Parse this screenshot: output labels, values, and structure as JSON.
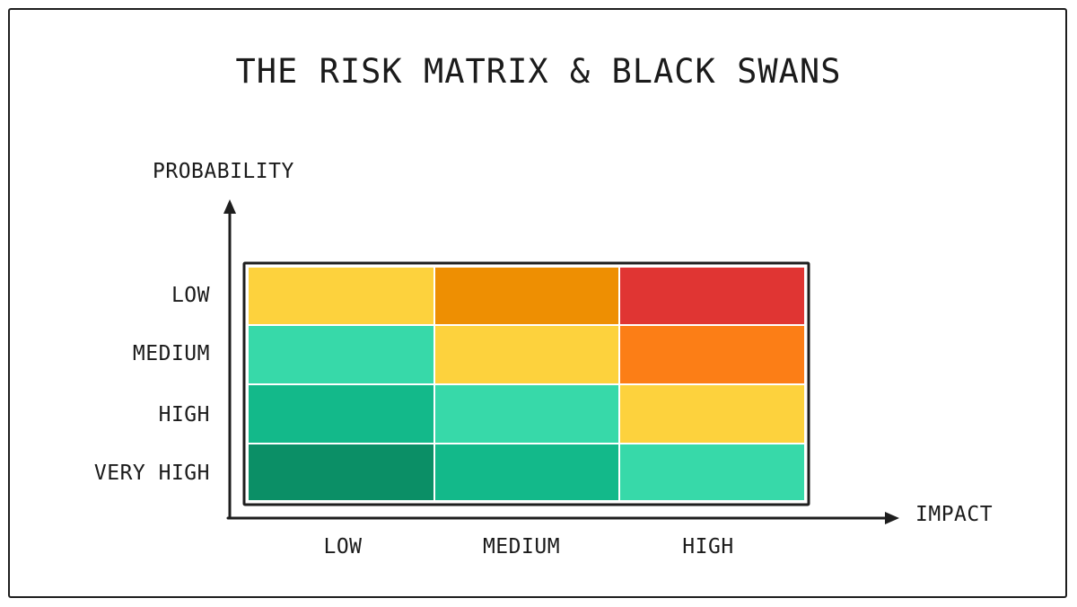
{
  "title": "THE RISK MATRIX & BLACK SWANS",
  "y_axis_label": "PROBABILITY",
  "x_axis_label": "IMPACT",
  "rows": [
    "LOW",
    "MEDIUM",
    "HIGH",
    "VERY HIGH"
  ],
  "columns": [
    "LOW",
    "MEDIUM",
    "HIGH"
  ],
  "cell_colors": [
    [
      "#fdd23d",
      "#ee8f02",
      "#e03533"
    ],
    [
      "#37d9a9",
      "#fdd23d",
      "#fc7e16"
    ],
    [
      "#13b98a",
      "#37d9a9",
      "#fdd23d"
    ],
    [
      "#0b8f66",
      "#13b98a",
      "#37d9a9"
    ]
  ]
}
